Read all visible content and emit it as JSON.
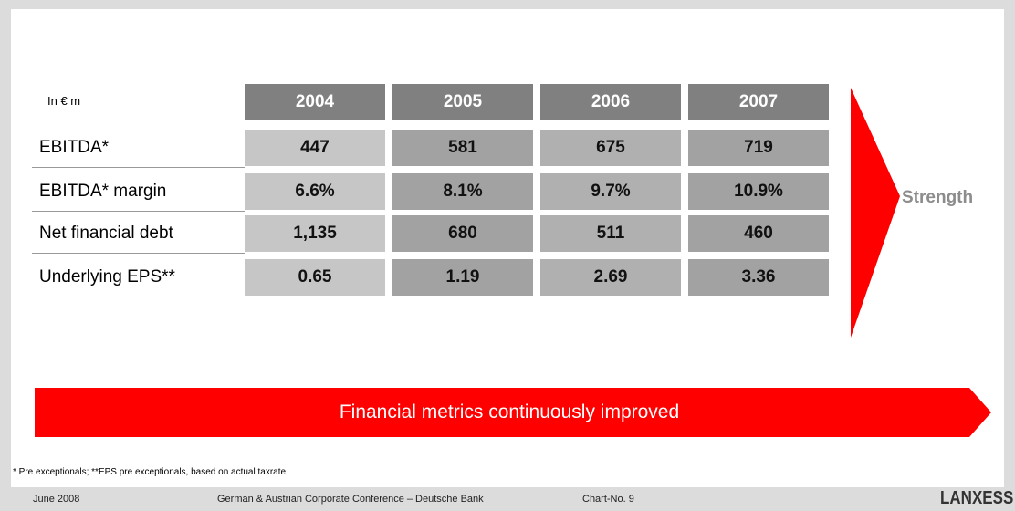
{
  "table": {
    "unit_label": "In € m",
    "columns": [
      "2004",
      "2005",
      "2006",
      "2007"
    ],
    "rows": [
      {
        "label": "EBITDA*",
        "values": [
          "447",
          "581",
          "675",
          "719"
        ]
      },
      {
        "label": "EBITDA* margin",
        "values": [
          "6.6%",
          "8.1%",
          "9.7%",
          "10.9%"
        ]
      },
      {
        "label": "Net financial debt",
        "values": [
          "1,135",
          "680",
          "511",
          "460"
        ]
      },
      {
        "label": "Underlying EPS**",
        "values": [
          "0.65",
          "1.19",
          "2.69",
          "3.36"
        ]
      }
    ]
  },
  "side_label": "Strength",
  "banner": "Financial metrics continuously improved",
  "footnote": "* Pre exceptionals; **EPS pre exceptionals, based on actual taxrate",
  "footer": {
    "date": "June 2008",
    "event": "German & Austrian Corporate Conference – Deutsche Bank",
    "chart_no": "Chart-No. 9",
    "logo": "LANXESS"
  }
}
